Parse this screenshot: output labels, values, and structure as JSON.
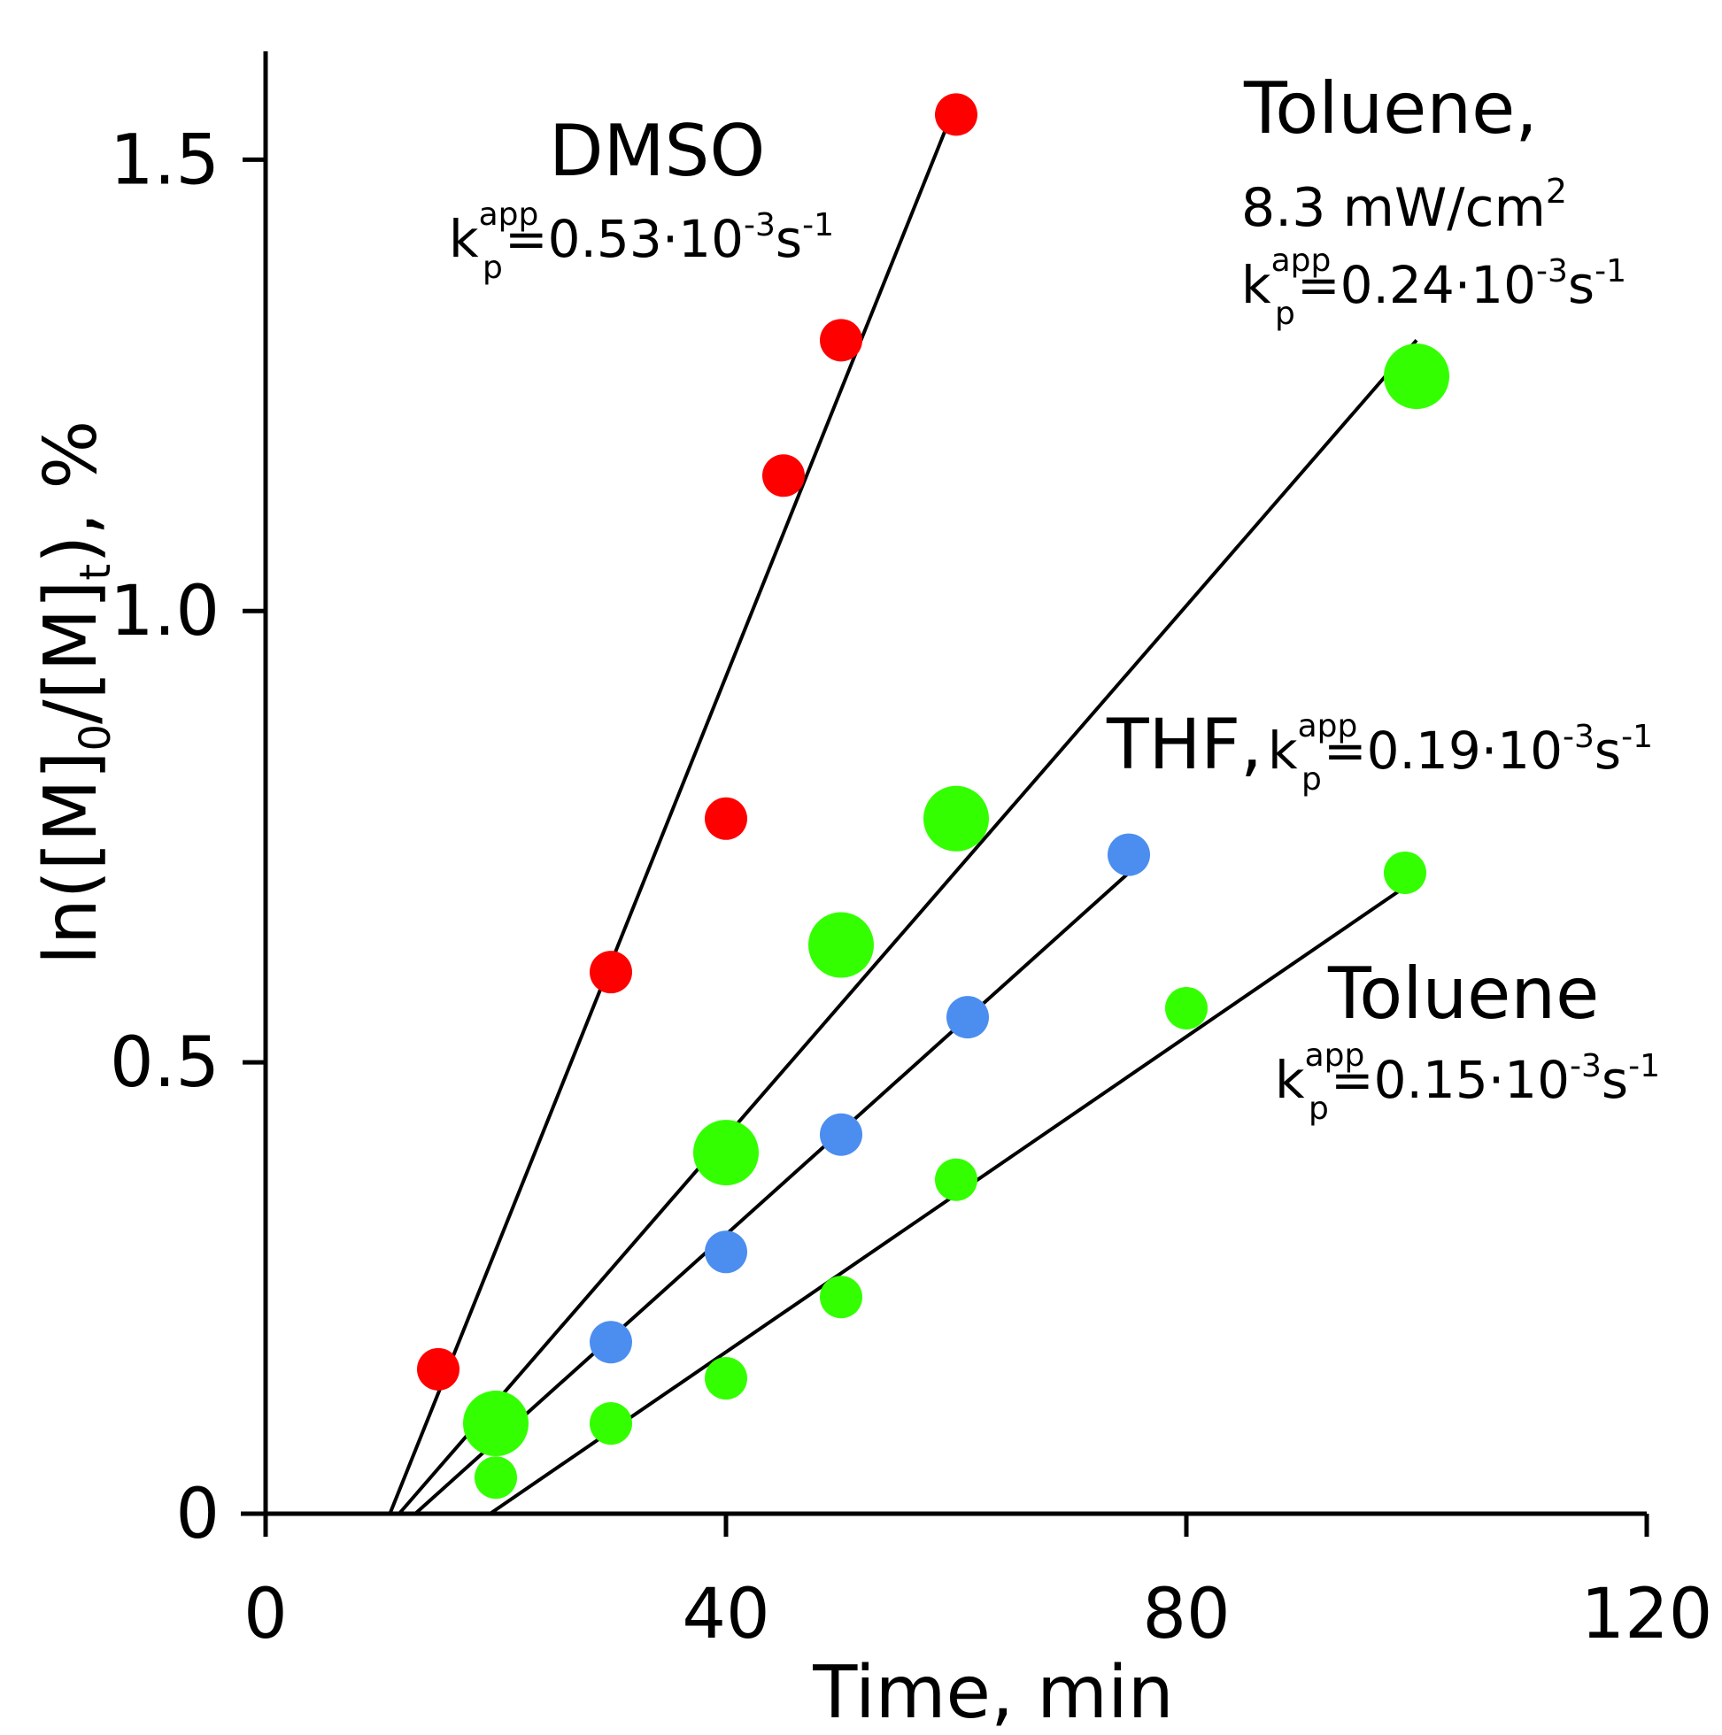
{
  "chart_data": {
    "type": "scatter",
    "title": "",
    "xlabel": "Time, min",
    "ylabel": {
      "main": "ln([M]",
      "sub0": "0",
      "mid": "/[M]",
      "subt": "t",
      "tail": "), %"
    },
    "xlim": [
      0,
      120
    ],
    "ylim": [
      0,
      1.62
    ],
    "xticks": [
      0,
      40,
      80,
      120
    ],
    "xtick_labels": [
      "0",
      "40",
      "80",
      "120"
    ],
    "yticks": [
      0,
      0.5,
      1.0,
      1.5
    ],
    "ytick_labels": [
      "0",
      "0.5",
      "1.0",
      "1.5"
    ],
    "grid": false,
    "series": [
      {
        "name": "DMSO",
        "color": "#ff0000",
        "marker_size": "small",
        "points": [
          [
            15,
            0.16
          ],
          [
            30,
            0.6
          ],
          [
            40,
            0.77
          ],
          [
            45,
            1.15
          ],
          [
            50,
            1.3
          ],
          [
            60,
            1.55
          ]
        ],
        "fit_line": [
          [
            10.8,
            0
          ],
          [
            59.6,
            1.55
          ]
        ]
      },
      {
        "name": "Toluene, 8.3 mW/cm2",
        "color": "#33ff00",
        "marker_size": "large",
        "points": [
          [
            20,
            0.1
          ],
          [
            40,
            0.4
          ],
          [
            50,
            0.63
          ],
          [
            60,
            0.77
          ],
          [
            100,
            1.26
          ]
        ],
        "fit_line": [
          [
            11.6,
            0
          ],
          [
            100,
            1.3
          ]
        ]
      },
      {
        "name": "THF",
        "color": "#4b8ef0",
        "marker_size": "small",
        "points": [
          [
            30,
            0.19
          ],
          [
            40,
            0.29
          ],
          [
            50,
            0.42
          ],
          [
            61,
            0.55
          ],
          [
            75,
            0.73
          ]
        ],
        "fit_line": [
          [
            13,
            0
          ],
          [
            75,
            0.71
          ]
        ]
      },
      {
        "name": "Toluene",
        "color": "#33ff00",
        "marker_size": "small",
        "points": [
          [
            20,
            0.04
          ],
          [
            30,
            0.1
          ],
          [
            40,
            0.15
          ],
          [
            50,
            0.24
          ],
          [
            60,
            0.37
          ],
          [
            80,
            0.56
          ],
          [
            99,
            0.71
          ]
        ],
        "fit_line": [
          [
            19.5,
            0
          ],
          [
            98.5,
            0.69
          ]
        ]
      }
    ],
    "annotations": [
      {
        "id": "dmso",
        "name": "DMSO",
        "k_prefix": "k",
        "k_sup": "app",
        "k_sub": "p",
        "k_value": "=0.53·10",
        "exp1": "-3",
        "unit": "s",
        "exp2": "-1"
      },
      {
        "id": "tol83",
        "name": "Toluene,",
        "power": "8.3 mW/cm",
        "power_exp": "2",
        "k_prefix": "k",
        "k_sup": "app",
        "k_sub": "p",
        "k_value": "=0.24·10",
        "exp1": "-3",
        "unit": "s",
        "exp2": "-1"
      },
      {
        "id": "thf",
        "name": "THF,",
        "k_prefix": "k",
        "k_sup": "app",
        "k_sub": "p",
        "k_value": "=0.19·10",
        "exp1": "-3",
        "unit": "s",
        "exp2": "-1"
      },
      {
        "id": "tol",
        "name": "Toluene",
        "k_prefix": "k",
        "k_sup": "app",
        "k_sub": "p",
        "k_value": "=0.15·10",
        "exp1": "-3",
        "unit": "s",
        "exp2": "-1"
      }
    ]
  }
}
